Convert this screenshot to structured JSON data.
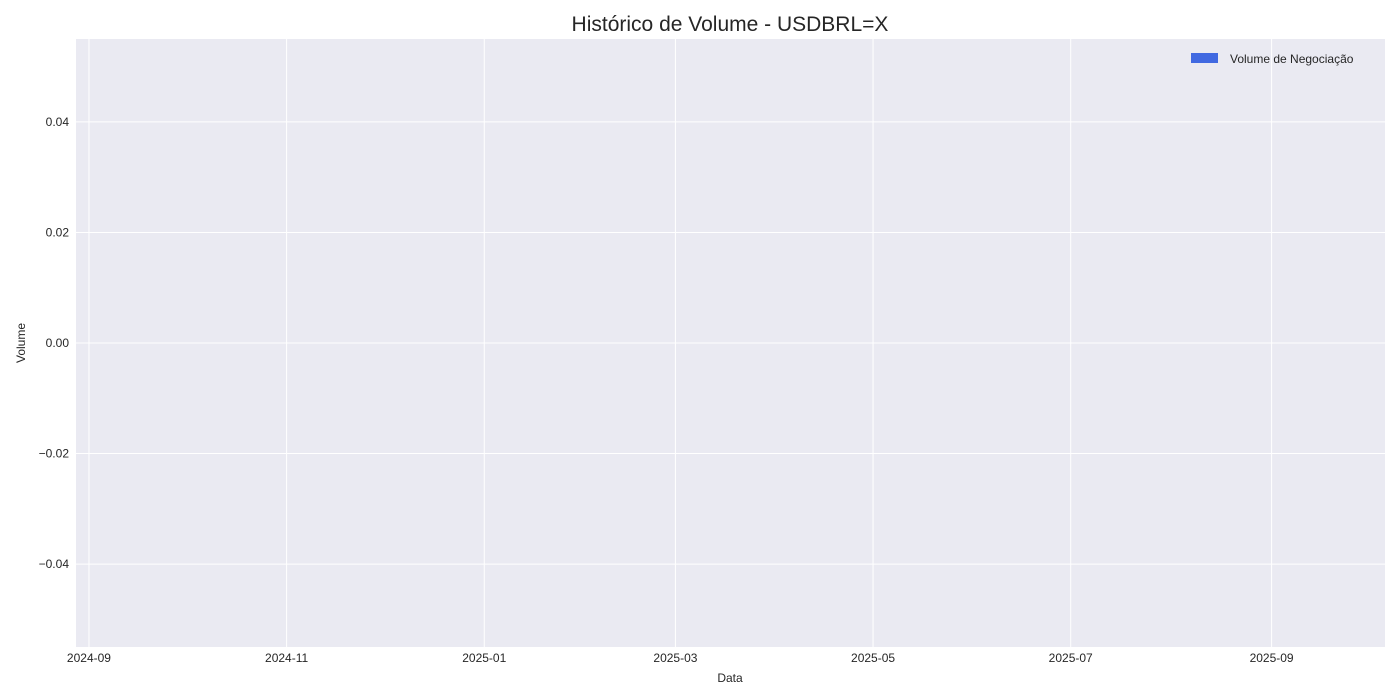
{
  "chart_data": {
    "type": "bar",
    "title": "Histórico de Volume - USDBRL=X",
    "xlabel": "Data",
    "ylabel": "Volume",
    "x_ticks": [
      "2024-09",
      "2024-11",
      "2025-01",
      "2025-03",
      "2025-05",
      "2025-07",
      "2025-09"
    ],
    "y_ticks": [
      "−0.04",
      "−0.02",
      "0.00",
      "0.02",
      "0.04"
    ],
    "ylim": [
      -0.055,
      0.055
    ],
    "xlim": [
      "2024-08-28",
      "2025-10-06"
    ],
    "grid": true,
    "legend_position": "top-right",
    "series": [
      {
        "name": "Volume de Negociação",
        "color": "#4169e1",
        "values": []
      }
    ],
    "colors": {
      "plot_background": "#eaeaf2",
      "grid": "#ffffff"
    }
  }
}
